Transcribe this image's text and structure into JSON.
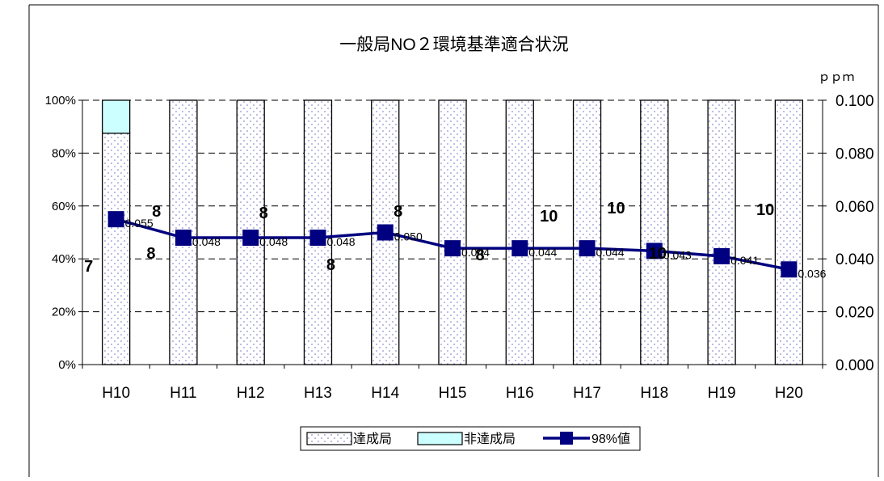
{
  "chart_data": {
    "type": "bar",
    "subtype": "stacked-percent bar with line on secondary axis",
    "title": "一般局NO２環境基準適合状況",
    "y2_unit": "ｐｐｍ",
    "categories": [
      "H10",
      "H11",
      "H12",
      "H13",
      "H14",
      "H15",
      "H16",
      "H17",
      "H18",
      "H19",
      "H20"
    ],
    "series": [
      {
        "name": "達成局",
        "kind": "bar",
        "axis": "left",
        "pattern": "dots",
        "values": [
          87.5,
          100,
          100,
          100,
          100,
          100,
          100,
          100,
          100,
          100,
          100
        ],
        "station_counts": [
          "7",
          "8",
          "8",
          "8",
          "8",
          "8",
          "10",
          "10",
          "10",
          "",
          ""
        ]
      },
      {
        "name": "非達成局",
        "kind": "bar",
        "axis": "left",
        "color": "#ccffff",
        "values": [
          12.5,
          0,
          0,
          0,
          0,
          0,
          0,
          0,
          0,
          0,
          0
        ]
      },
      {
        "name": "98%値",
        "kind": "line",
        "axis": "right",
        "color": "#000080",
        "values": [
          0.055,
          0.048,
          0.048,
          0.048,
          0.05,
          0.044,
          0.044,
          0.044,
          0.043,
          0.041,
          0.036
        ],
        "labels": [
          "0.055",
          "0.048",
          "0.048",
          "0.048",
          "0.050",
          "0.044",
          "0.044",
          "0.044",
          "0.043",
          "0.041",
          "0.036"
        ]
      }
    ],
    "extra_count_labels": [
      {
        "category": "H10",
        "text": "8"
      },
      {
        "category": "H18",
        "text": "10"
      },
      {
        "category": "H19",
        "text": "10"
      }
    ],
    "y_left": {
      "min": 0,
      "max": 100,
      "ticks": [
        "0%",
        "20%",
        "40%",
        "60%",
        "80%",
        "100%"
      ]
    },
    "y_right": {
      "min": 0,
      "max": 0.1,
      "ticks": [
        "0.000",
        "0.020",
        "0.040",
        "0.060",
        "0.080",
        "0.100"
      ]
    },
    "grid": "dashed horizontal",
    "legend": {
      "position": "bottom",
      "items": [
        "達成局",
        "非達成局",
        "98%値"
      ]
    }
  }
}
